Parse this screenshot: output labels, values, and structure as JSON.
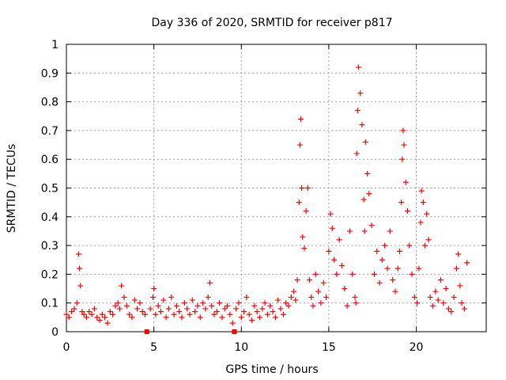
{
  "chart_data": {
    "type": "scatter",
    "title": "Day 336 of 2020, SRMTID for receiver p817",
    "xlabel": "GPS time / hours",
    "ylabel": "SRMTID / TECUs",
    "xlim": [
      0,
      24
    ],
    "ylim": [
      0,
      1
    ],
    "grid": true,
    "x_ticks": [
      0,
      5,
      10,
      15,
      20
    ],
    "x_tick_labels": [
      "0",
      "5",
      "10",
      "15",
      "20"
    ],
    "y_ticks": [
      0,
      0.1,
      0.2,
      0.3,
      0.4,
      0.5,
      0.6,
      0.7,
      0.8,
      0.9,
      1
    ],
    "y_tick_labels": [
      "0",
      "0.1",
      "0.2",
      "0.3",
      "0.4",
      "0.5",
      "0.6",
      "0.7",
      "0.8",
      "0.9",
      "1"
    ],
    "marker": "+",
    "color": "#ff0000",
    "zero_markers_x": [
      4.6,
      9.6
    ],
    "series": [
      {
        "name": "SRMTID",
        "x": [
          0.0,
          0.15,
          0.3,
          0.45,
          0.6,
          0.7,
          0.75,
          0.8,
          0.9,
          1.0,
          1.15,
          1.3,
          1.45,
          1.6,
          1.75,
          1.9,
          2.05,
          2.2,
          2.35,
          2.5,
          2.65,
          2.8,
          2.95,
          3.05,
          3.15,
          3.3,
          3.45,
          3.6,
          3.75,
          3.9,
          4.05,
          4.2,
          4.35,
          4.5,
          4.8,
          4.95,
          5.0,
          5.1,
          5.25,
          5.4,
          5.55,
          5.7,
          5.85,
          6.0,
          6.15,
          6.3,
          6.45,
          6.6,
          6.75,
          6.9,
          7.05,
          7.2,
          7.35,
          7.5,
          7.65,
          7.8,
          7.95,
          8.1,
          8.2,
          8.3,
          8.45,
          8.6,
          8.75,
          8.9,
          9.05,
          9.2,
          9.35,
          9.5,
          9.7,
          9.85,
          10.0,
          10.15,
          10.3,
          10.45,
          10.6,
          10.75,
          10.9,
          11.05,
          11.2,
          11.35,
          11.5,
          11.65,
          11.8,
          11.95,
          12.1,
          12.25,
          12.4,
          12.55,
          12.7,
          12.85,
          13.0,
          13.1,
          13.2,
          13.3,
          13.35,
          13.4,
          13.45,
          13.5,
          13.6,
          13.7,
          13.8,
          13.9,
          14.0,
          14.1,
          14.25,
          14.4,
          14.55,
          14.7,
          14.85,
          15.0,
          15.1,
          15.2,
          15.3,
          15.45,
          15.6,
          15.75,
          15.9,
          16.05,
          16.2,
          16.35,
          16.5,
          16.55,
          16.6,
          16.65,
          16.7,
          16.8,
          16.9,
          17.0,
          17.05,
          17.1,
          17.2,
          17.3,
          17.45,
          17.6,
          17.75,
          17.9,
          18.05,
          18.2,
          18.35,
          18.5,
          18.65,
          18.8,
          18.95,
          19.05,
          19.15,
          19.2,
          19.25,
          19.3,
          19.4,
          19.5,
          19.6,
          19.75,
          19.9,
          20.05,
          20.15,
          20.25,
          20.3,
          20.4,
          20.5,
          20.6,
          20.7,
          20.8,
          20.95,
          21.1,
          21.25,
          21.4,
          21.55,
          21.7,
          21.85,
          22.0,
          22.15,
          22.3,
          22.4,
          22.5,
          22.6,
          22.75,
          22.9
        ],
        "y": [
          0.06,
          0.05,
          0.07,
          0.08,
          0.1,
          0.27,
          0.22,
          0.16,
          0.07,
          0.06,
          0.05,
          0.07,
          0.06,
          0.08,
          0.05,
          0.04,
          0.06,
          0.05,
          0.03,
          0.07,
          0.06,
          0.09,
          0.1,
          0.08,
          0.16,
          0.12,
          0.09,
          0.06,
          0.05,
          0.11,
          0.08,
          0.1,
          0.07,
          0.06,
          0.08,
          0.12,
          0.15,
          0.06,
          0.09,
          0.07,
          0.11,
          0.05,
          0.08,
          0.12,
          0.06,
          0.09,
          0.07,
          0.05,
          0.1,
          0.08,
          0.06,
          0.11,
          0.07,
          0.09,
          0.05,
          0.1,
          0.08,
          0.12,
          0.17,
          0.09,
          0.06,
          0.07,
          0.1,
          0.05,
          0.08,
          0.09,
          0.06,
          0.03,
          0.08,
          0.1,
          0.05,
          0.07,
          0.12,
          0.06,
          0.04,
          0.09,
          0.07,
          0.05,
          0.08,
          0.1,
          0.06,
          0.09,
          0.07,
          0.05,
          0.11,
          0.08,
          0.06,
          0.1,
          0.09,
          0.12,
          0.14,
          0.11,
          0.18,
          0.45,
          0.65,
          0.74,
          0.5,
          0.33,
          0.29,
          0.42,
          0.5,
          0.18,
          0.12,
          0.09,
          0.2,
          0.14,
          0.1,
          0.17,
          0.12,
          0.28,
          0.41,
          0.36,
          0.25,
          0.2,
          0.32,
          0.23,
          0.15,
          0.09,
          0.35,
          0.2,
          0.12,
          0.1,
          0.62,
          0.77,
          0.92,
          0.83,
          0.72,
          0.46,
          0.35,
          0.66,
          0.55,
          0.48,
          0.37,
          0.2,
          0.28,
          0.17,
          0.25,
          0.3,
          0.22,
          0.35,
          0.18,
          0.14,
          0.22,
          0.28,
          0.45,
          0.6,
          0.7,
          0.65,
          0.52,
          0.42,
          0.3,
          0.2,
          0.12,
          0.1,
          0.22,
          0.38,
          0.49,
          0.45,
          0.3,
          0.41,
          0.32,
          0.12,
          0.09,
          0.14,
          0.11,
          0.18,
          0.1,
          0.15,
          0.08,
          0.07,
          0.12,
          0.22,
          0.27,
          0.16,
          0.1,
          0.08,
          0.24
        ]
      }
    ]
  }
}
